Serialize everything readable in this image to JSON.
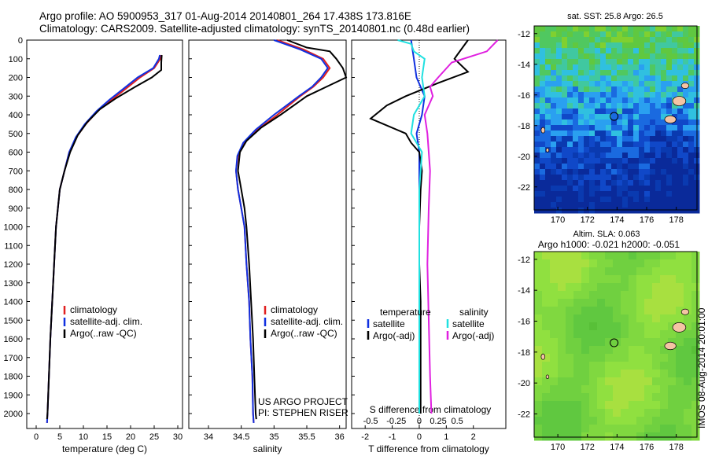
{
  "header": {
    "line1": "Argo profile: AO 5900953_317 01-Aug-2014 20140801_264 17.438S 173.816E",
    "line2": "Climatology: CARS2009. Satellite-adjusted climatology: synTS_20140801.nc (0.48d earlier)"
  },
  "side_label": "IMOS 08-Aug-2014 20:01:00",
  "colors": {
    "clim": "#e02020",
    "sat": "#1030e0",
    "argo": "#000000",
    "sal_sat": "#20e0e0",
    "sal_argo": "#e020e0",
    "land": "#f4c4a4"
  },
  "chart_data": [
    {
      "type": "line",
      "xlabel": "temperature (deg C)",
      "ylabel": "",
      "xlim": [
        -2,
        31
      ],
      "ylim": [
        2080,
        0
      ],
      "xticks": [
        0,
        5,
        10,
        15,
        20,
        25,
        30
      ],
      "yticks": [
        0,
        100,
        200,
        300,
        400,
        500,
        600,
        700,
        800,
        900,
        1000,
        1100,
        1200,
        1300,
        1400,
        1500,
        1600,
        1700,
        1800,
        1900,
        2000
      ],
      "legend": [
        "climatology",
        "satellite-adj. clim.",
        "Argo(..raw -QC)"
      ],
      "series": [
        {
          "name": "climatology",
          "color": "#e02020",
          "points": [
            [
              26.5,
              80
            ],
            [
              26.3,
              100
            ],
            [
              25,
              150
            ],
            [
              22,
              200
            ],
            [
              19,
              260
            ],
            [
              16,
              320
            ],
            [
              13,
              380
            ],
            [
              10.5,
              450
            ],
            [
              8.5,
              520
            ],
            [
              7,
              600
            ],
            [
              6,
              700
            ],
            [
              5,
              800
            ],
            [
              4.6,
              900
            ],
            [
              4.2,
              1000
            ],
            [
              3.8,
              1200
            ],
            [
              3.4,
              1400
            ],
            [
              3,
              1600
            ],
            [
              2.7,
              1800
            ],
            [
              2.4,
              2000
            ],
            [
              2.3,
              2050
            ]
          ]
        },
        {
          "name": "satellite-adj. clim.",
          "color": "#1030e0",
          "points": [
            [
              26.2,
              80
            ],
            [
              26,
              100
            ],
            [
              24.8,
              150
            ],
            [
              21.5,
              200
            ],
            [
              18.5,
              260
            ],
            [
              15.5,
              320
            ],
            [
              12.8,
              380
            ],
            [
              10.3,
              450
            ],
            [
              8.4,
              520
            ],
            [
              7,
              600
            ],
            [
              6,
              700
            ],
            [
              5,
              800
            ],
            [
              4.6,
              900
            ],
            [
              4.2,
              1000
            ],
            [
              3.8,
              1200
            ],
            [
              3.4,
              1400
            ],
            [
              3,
              1600
            ],
            [
              2.7,
              1800
            ],
            [
              2.4,
              2000
            ],
            [
              2.3,
              2050
            ]
          ]
        },
        {
          "name": "Argo(..raw -QC)",
          "color": "#000000",
          "points": [
            [
              26.6,
              80
            ],
            [
              26.5,
              120
            ],
            [
              26.5,
              160
            ],
            [
              24.5,
              200
            ],
            [
              21,
              250
            ],
            [
              17,
              310
            ],
            [
              13.5,
              370
            ],
            [
              10.8,
              440
            ],
            [
              8.8,
              510
            ],
            [
              7.2,
              600
            ],
            [
              6,
              700
            ],
            [
              5,
              800
            ],
            [
              4.6,
              900
            ],
            [
              4.2,
              1000
            ],
            [
              3.8,
              1200
            ],
            [
              3.4,
              1400
            ],
            [
              3,
              1600
            ],
            [
              2.7,
              1800
            ],
            [
              2.4,
              2000
            ],
            [
              2.3,
              2030
            ]
          ]
        }
      ]
    },
    {
      "type": "line",
      "xlabel": "salinity",
      "ylabel": "",
      "xlim": [
        33.7,
        36.1
      ],
      "ylim": [
        2080,
        0
      ],
      "xticks": [
        34,
        34.5,
        35,
        35.5,
        36
      ],
      "legend": [
        "climatology",
        "satellite-adj. clim.",
        "Argo(..raw -QC)"
      ],
      "annotation": [
        "US ARGO PROJECT",
        "PI: STEPHEN RISER"
      ],
      "series": [
        {
          "name": "climatology",
          "color": "#e02020",
          "points": [
            [
              35.05,
              0
            ],
            [
              35.45,
              50
            ],
            [
              35.75,
              100
            ],
            [
              35.85,
              150
            ],
            [
              35.75,
              200
            ],
            [
              35.6,
              250
            ],
            [
              35.4,
              300
            ],
            [
              35.05,
              400
            ],
            [
              34.75,
              480
            ],
            [
              34.55,
              550
            ],
            [
              34.45,
              620
            ],
            [
              34.42,
              700
            ],
            [
              34.45,
              800
            ],
            [
              34.5,
              900
            ],
            [
              34.55,
              1000
            ],
            [
              34.58,
              1200
            ],
            [
              34.62,
              1400
            ],
            [
              34.64,
              1600
            ],
            [
              34.67,
              1800
            ],
            [
              34.68,
              2000
            ],
            [
              34.69,
              2050
            ]
          ]
        },
        {
          "name": "satellite-adj. clim.",
          "color": "#1030e0",
          "points": [
            [
              35.0,
              0
            ],
            [
              35.4,
              50
            ],
            [
              35.72,
              100
            ],
            [
              35.82,
              150
            ],
            [
              35.72,
              200
            ],
            [
              35.58,
              250
            ],
            [
              35.38,
              300
            ],
            [
              35.0,
              400
            ],
            [
              34.72,
              480
            ],
            [
              34.53,
              550
            ],
            [
              34.44,
              620
            ],
            [
              34.42,
              700
            ],
            [
              34.45,
              800
            ],
            [
              34.5,
              900
            ],
            [
              34.55,
              1000
            ],
            [
              34.58,
              1200
            ],
            [
              34.62,
              1400
            ],
            [
              34.64,
              1600
            ],
            [
              34.67,
              1800
            ],
            [
              34.68,
              2000
            ],
            [
              34.69,
              2050
            ]
          ]
        },
        {
          "name": "Argo(..raw -QC)",
          "color": "#000000",
          "points": [
            [
              35.2,
              0
            ],
            [
              35.5,
              40
            ],
            [
              35.85,
              60
            ],
            [
              35.95,
              100
            ],
            [
              36.05,
              150
            ],
            [
              36.1,
              200
            ],
            [
              35.8,
              250
            ],
            [
              35.5,
              300
            ],
            [
              35.1,
              400
            ],
            [
              34.8,
              470
            ],
            [
              34.58,
              540
            ],
            [
              34.48,
              600
            ],
            [
              34.45,
              700
            ],
            [
              34.5,
              800
            ],
            [
              34.55,
              900
            ],
            [
              34.58,
              1000
            ],
            [
              34.62,
              1200
            ],
            [
              34.65,
              1400
            ],
            [
              34.68,
              1600
            ],
            [
              34.7,
              1800
            ],
            [
              34.72,
              2000
            ],
            [
              34.73,
              2030
            ]
          ]
        }
      ]
    },
    {
      "type": "line",
      "xlabel": "T difference from climatology",
      "xlabel_top": "S difference from climatology",
      "ylabel": "",
      "xlim": [
        -2.5,
        3.2
      ],
      "ylim": [
        2080,
        0
      ],
      "xticks": [
        -2,
        -1,
        0,
        1,
        2
      ],
      "xticks_top": [
        "-0.5",
        "-0.25",
        "0",
        "0.25",
        "0.5"
      ],
      "legend": [
        "temperature",
        "satellite",
        "Argo(-adj)",
        "salinity",
        "satellite",
        "Argo(-adj)"
      ],
      "series": [
        {
          "name": "satellite",
          "color": "#1030e0",
          "points": [
            [
              -0.3,
              0
            ],
            [
              -0.2,
              100
            ],
            [
              -0.1,
              200
            ],
            [
              0.2,
              300
            ],
            [
              0.1,
              400
            ],
            [
              -0.1,
              500
            ],
            [
              0,
              600
            ],
            [
              0,
              800
            ],
            [
              0,
              1000
            ],
            [
              0,
              1200
            ],
            [
              0,
              1400
            ],
            [
              0,
              1600
            ],
            [
              0,
              1800
            ],
            [
              0,
              2000
            ]
          ]
        },
        {
          "name": "Argo(-adj)",
          "color": "#000000",
          "points": [
            [
              1.8,
              0
            ],
            [
              1.4,
              80
            ],
            [
              1.3,
              100
            ],
            [
              1.8,
              170
            ],
            [
              0.7,
              230
            ],
            [
              -0.5,
              300
            ],
            [
              -1.2,
              350
            ],
            [
              -1.8,
              420
            ],
            [
              -0.5,
              500
            ],
            [
              -0.3,
              550
            ],
            [
              0,
              600
            ],
            [
              0.1,
              700
            ],
            [
              0.05,
              800
            ],
            [
              0,
              1000
            ],
            [
              0,
              1200
            ],
            [
              0.05,
              1400
            ],
            [
              0.05,
              1600
            ],
            [
              0.05,
              1800
            ],
            [
              0.05,
              2000
            ]
          ]
        },
        {
          "name": "satellite",
          "color": "#20e0e0",
          "points": [
            [
              -0.8,
              0
            ],
            [
              -0.3,
              20
            ],
            [
              -0.2,
              60
            ],
            [
              0.2,
              100
            ],
            [
              0.1,
              200
            ],
            [
              0.2,
              300
            ],
            [
              -0.2,
              400
            ],
            [
              -0.3,
              500
            ],
            [
              0.1,
              600
            ],
            [
              0,
              800
            ],
            [
              0,
              1200
            ],
            [
              0,
              1600
            ],
            [
              0,
              2000
            ]
          ]
        },
        {
          "name": "Argo(-adj)",
          "color": "#e020e0",
          "points": [
            [
              2.9,
              0
            ],
            [
              2.5,
              60
            ],
            [
              1.2,
              120
            ],
            [
              0.7,
              200
            ],
            [
              0.4,
              250
            ],
            [
              0.5,
              300
            ],
            [
              0.2,
              400
            ],
            [
              0.3,
              500
            ],
            [
              0.4,
              700
            ],
            [
              0.35,
              900
            ],
            [
              0.3,
              1200
            ],
            [
              0.35,
              1500
            ],
            [
              0.4,
              1800
            ],
            [
              0.45,
              2000
            ]
          ]
        }
      ]
    }
  ],
  "map_top": {
    "title": "sat. SST: 25.8  Argo: 26.5",
    "xticks": [
      170,
      172,
      174,
      176,
      178
    ],
    "yticks": [
      -12,
      -14,
      -16,
      -18,
      -20,
      -22
    ],
    "xlim": [
      168.4,
      179.4
    ],
    "ylim": [
      -23.5,
      -11.5
    ],
    "point": [
      173.8,
      -17.4
    ]
  },
  "map_bottom": {
    "title1": "Altim. SLA: 0.063",
    "title2": "Argo h1000: -0.021  h2000: -0.051",
    "xticks": [
      170,
      172,
      174,
      176,
      178
    ],
    "yticks": [
      -12,
      -14,
      -16,
      -18,
      -20,
      -22
    ],
    "xlim": [
      168.4,
      179.4
    ],
    "ylim": [
      -23.5,
      -11.5
    ],
    "point": [
      173.8,
      -17.4
    ]
  }
}
